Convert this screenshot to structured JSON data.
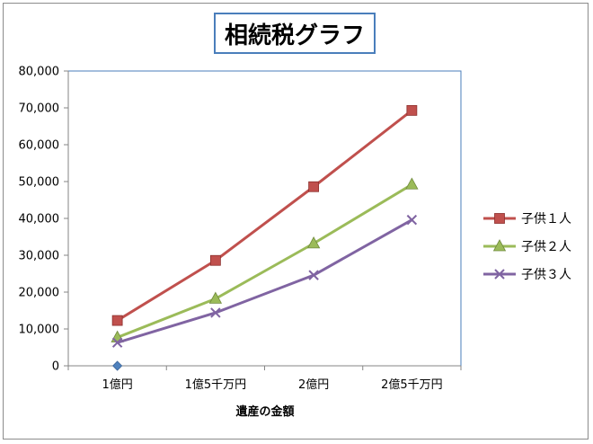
{
  "chart_data": {
    "type": "line",
    "title": "相続税グラフ",
    "xlabel": "遺産の金額",
    "ylabel": "",
    "categories": [
      "1億円",
      "1億5千万円",
      "2億円",
      "2億5千万円"
    ],
    "ylim": [
      0,
      80000
    ],
    "yticks": [
      "0",
      "10,000",
      "20,000",
      "30,000",
      "40,000",
      "50,000",
      "60,000",
      "70,000",
      "80,000"
    ],
    "grid": false,
    "legend_position": "right",
    "series": [
      {
        "name": "子供１人",
        "values": [
          12300,
          28600,
          48600,
          69300
        ],
        "color": "#c0504d",
        "marker": "square"
      },
      {
        "name": "子供２人",
        "values": [
          7700,
          18200,
          33200,
          49200
        ],
        "color": "#9bbb59",
        "marker": "triangle"
      },
      {
        "name": "子供３人",
        "values": [
          6300,
          14400,
          24600,
          39600
        ],
        "color": "#8064a2",
        "marker": "x"
      }
    ],
    "extra_points": [
      {
        "category": "1億円",
        "value": 0,
        "color": "#4f81bd",
        "marker": "diamond"
      }
    ]
  }
}
